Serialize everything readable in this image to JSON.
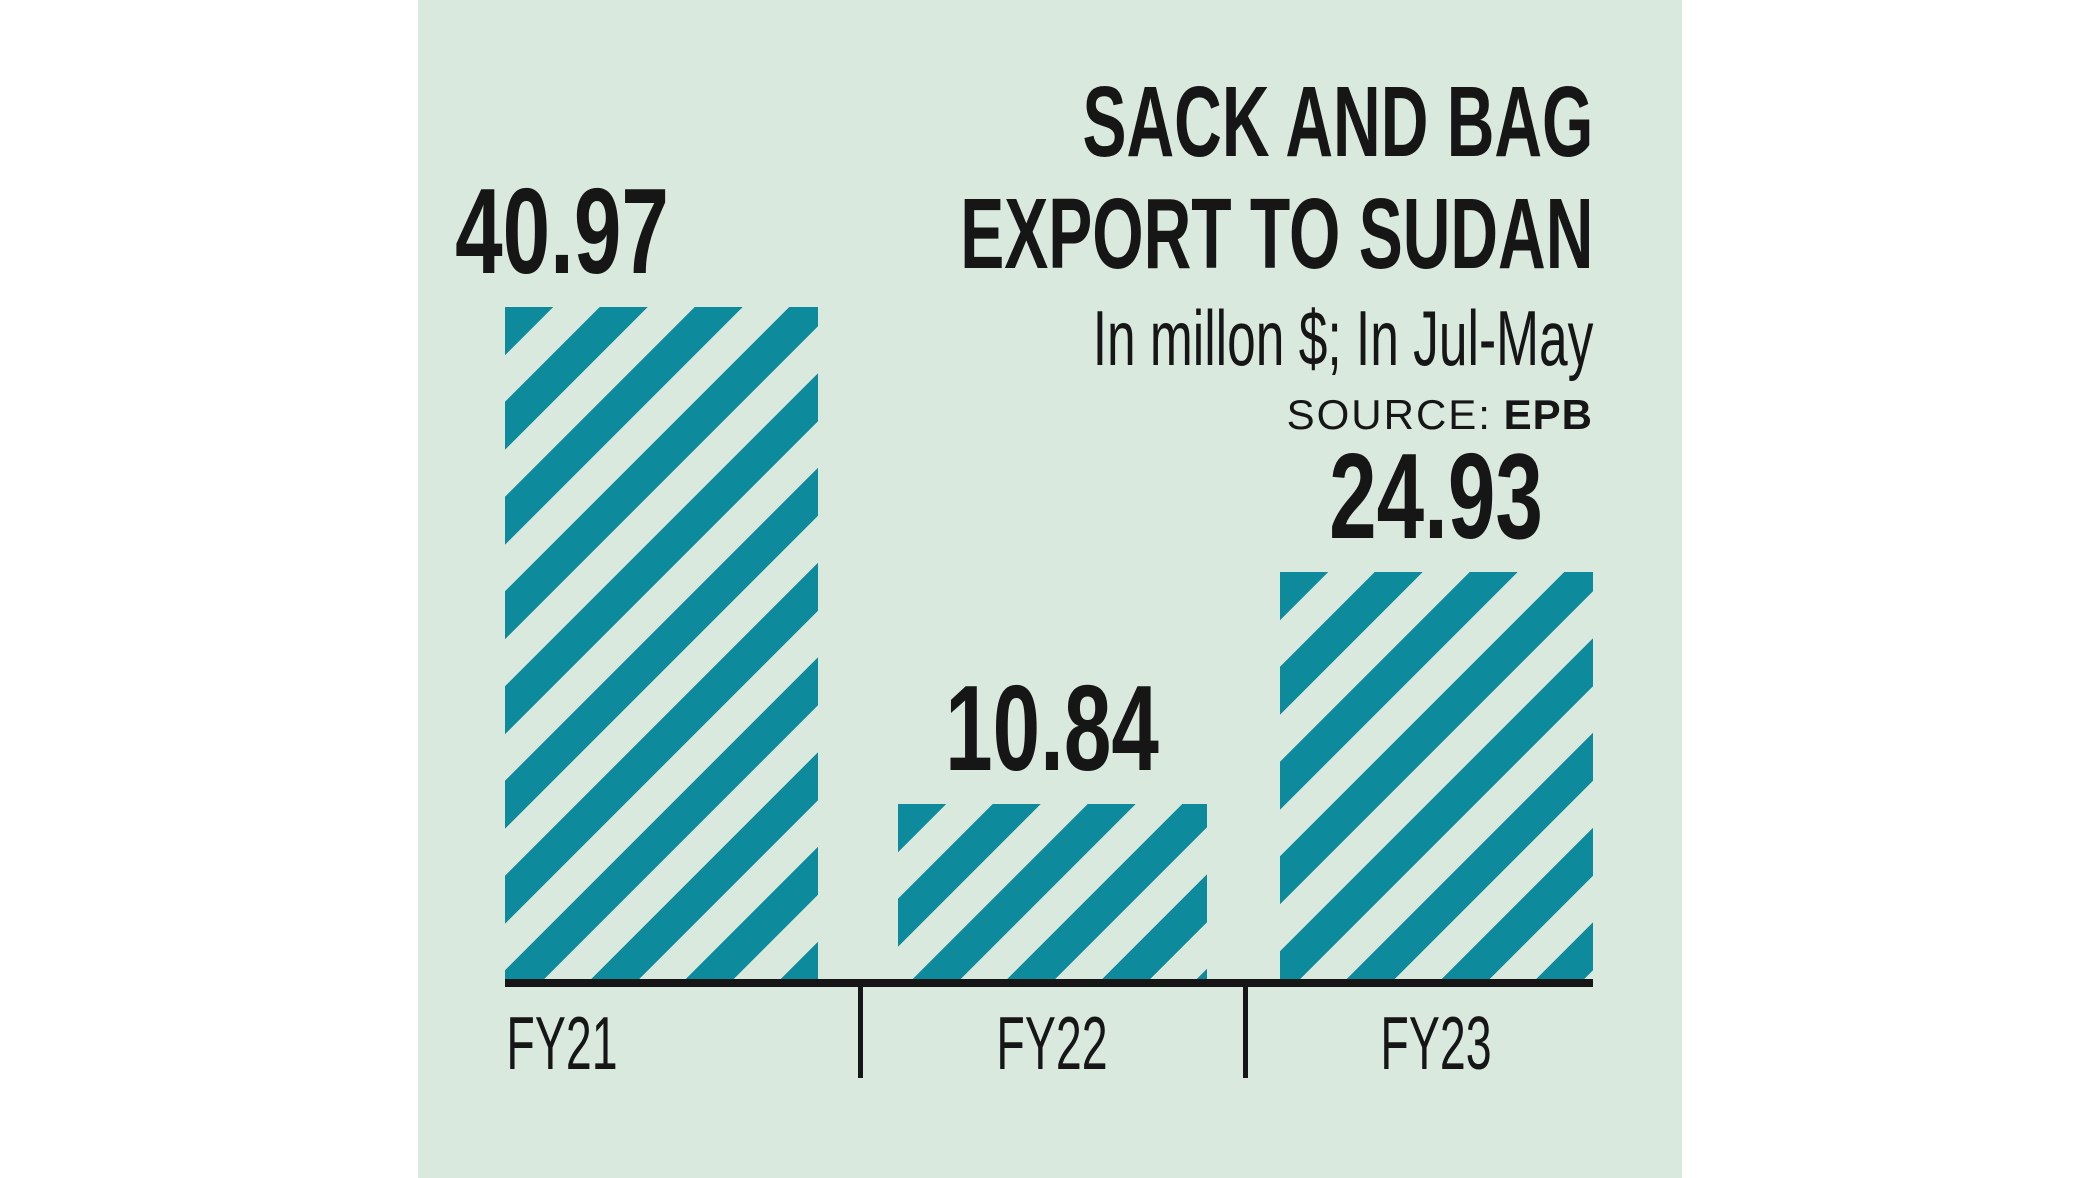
{
  "panel": {
    "title_line1": "SACK AND BAG",
    "title_line2": "EXPORT TO SUDAN",
    "subtitle": "In millon $; In Jul-May",
    "source_label": "SOURCE:",
    "source_value": "EPB"
  },
  "colors": {
    "panel_bg": "#d9e9de",
    "stripe_teal": "#0d8a9b",
    "ink": "#161616"
  },
  "chart_data": {
    "type": "bar",
    "title": "SACK AND BAG EXPORT TO SUDAN",
    "subtitle": "In millon $; In Jul-May",
    "source": "EPB",
    "categories": [
      "FY21",
      "FY22",
      "FY23"
    ],
    "values": [
      40.97,
      10.84,
      24.93
    ],
    "value_labels": [
      "40.97",
      "10.84",
      "24.93"
    ],
    "xlabel": "",
    "ylabel": "In millon $",
    "ylim": [
      0,
      41
    ],
    "grid": false,
    "legend": false,
    "bar_style": "diagonal-stripes-45deg",
    "value_label_position": "above-bar"
  }
}
